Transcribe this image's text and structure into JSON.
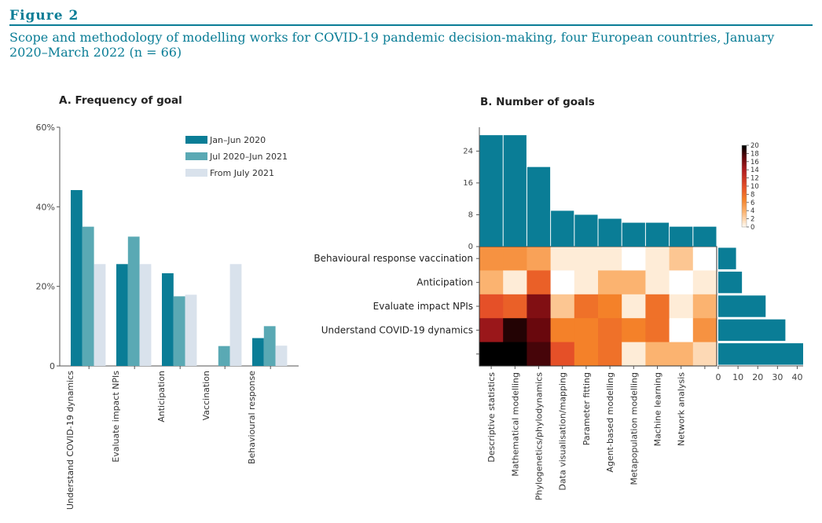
{
  "figure": {
    "label": "Figure 2",
    "caption": "Scope and methodology of modelling works for COVID-19 pandemic decision-making, four European countries, January 2020–March 2022 (n = 66)"
  },
  "colors": {
    "series": [
      "#0a7d96",
      "#5aa9b4",
      "#d9e2ec"
    ],
    "bar": "#0a7d96",
    "axis": "#555555",
    "caption": "#0a7d96"
  },
  "chart_data": [
    {
      "type": "bar",
      "title": "A. Frequency of goal",
      "categories": [
        "Understand COVID-19 dynamics",
        "Evaluate impact NPIs",
        "Anticipation",
        "Vaccination",
        "Behavioural response"
      ],
      "series": [
        {
          "name": "Jan–Jun 2020",
          "values": [
            44.2,
            25.6,
            23.3,
            0,
            7.0
          ]
        },
        {
          "name": "Jul 2020–Jun 2021",
          "values": [
            35.0,
            32.5,
            17.5,
            5.0,
            10.0
          ]
        },
        {
          "name": "From July 2021",
          "values": [
            25.6,
            25.6,
            17.9,
            25.6,
            5.1
          ]
        }
      ],
      "ylim": [
        0,
        60
      ],
      "yticks": [
        "0",
        "20%",
        "40%",
        "60%"
      ],
      "legend_position": "top-right"
    },
    {
      "type": "heatmap",
      "title": "B. Number of goals",
      "columns": [
        "Descriptive statistics",
        "Mathematical modelling",
        "Phylogenetics/phylodynamics",
        "Data visualisation/mapping",
        "Parameter fitting",
        "Agent-based modelling",
        "Metapopulation modelling",
        "Machine learning",
        "Network analysis",
        ""
      ],
      "rows": [
        "Behavioural response vaccination",
        "Anticipation",
        "Evaluate impact NPIs",
        "Understand COVID-19 dynamics",
        ""
      ],
      "matrix": [
        [
          6,
          6,
          5,
          1,
          1,
          1,
          0,
          1,
          3,
          0
        ],
        [
          4,
          1,
          9,
          0,
          1,
          4,
          4,
          1,
          0,
          1
        ],
        [
          10,
          9,
          16,
          3,
          8,
          7,
          1,
          8,
          1,
          4
        ],
        [
          15,
          19,
          17,
          7,
          7,
          8,
          7,
          8,
          0,
          6
        ],
        [
          20,
          20,
          18,
          10,
          7,
          8,
          1,
          4,
          4,
          2
        ]
      ],
      "column_totals": [
        28,
        28,
        20,
        9,
        8,
        7,
        6,
        6,
        5,
        5
      ],
      "row_totals": [
        9,
        12,
        24,
        34,
        43
      ],
      "colorbar": {
        "min": 0,
        "max": 20,
        "ticks": [
          "20",
          "18",
          "16",
          "14",
          "12",
          "10",
          "8",
          "6",
          "4",
          "2",
          "0"
        ]
      },
      "top_axis_ticks": [
        "0",
        "8",
        "16",
        "24"
      ],
      "top_axis_max": 30,
      "right_axis_ticks": [
        "0",
        "10",
        "20",
        "30",
        "40"
      ],
      "right_axis_max": 43
    }
  ]
}
